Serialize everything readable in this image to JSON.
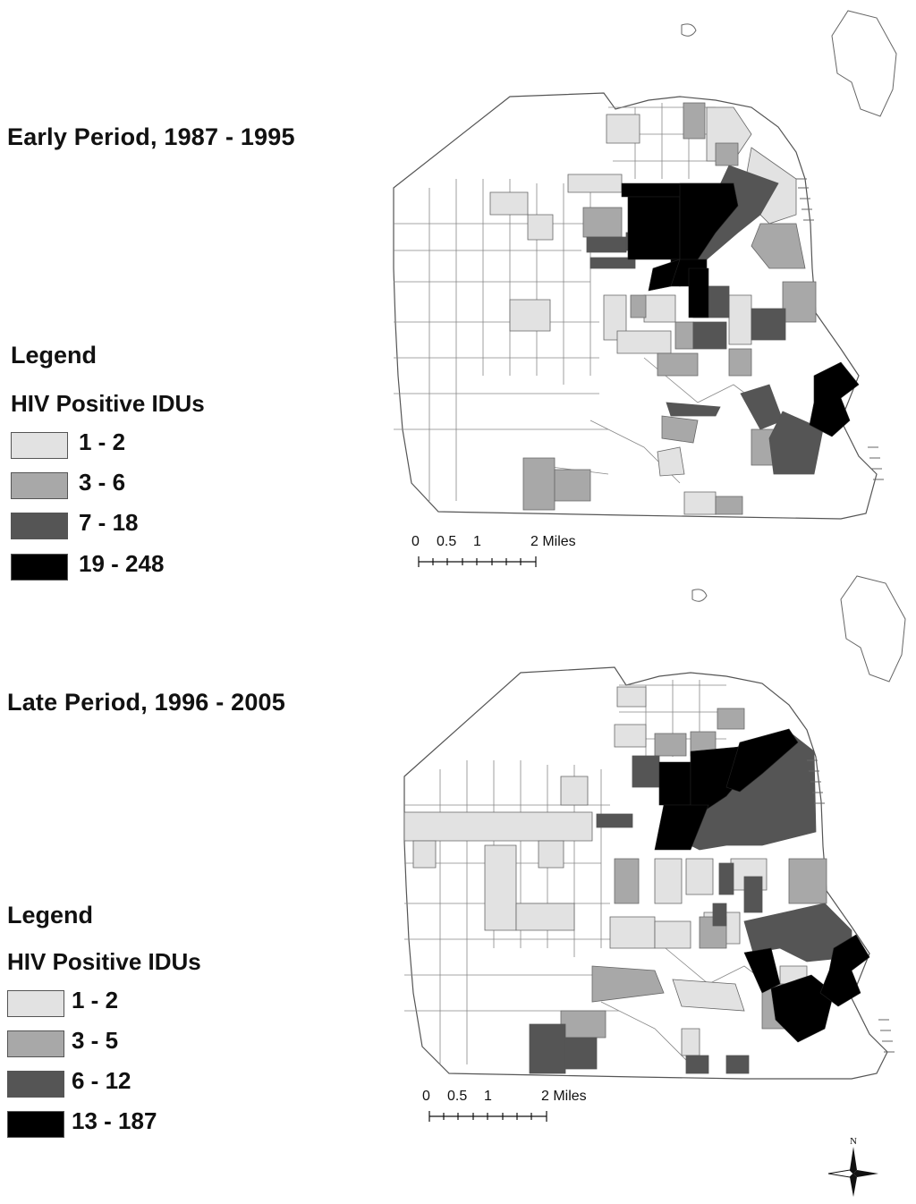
{
  "colors": {
    "class1": "#e2e2e2",
    "class2": "#a8a8a8",
    "class3": "#555555",
    "class4": "#000000",
    "none": "#ffffff",
    "outline": "#666666"
  },
  "maps": [
    {
      "id": "early",
      "title": "Early Period, 1987 - 1995",
      "legend": {
        "heading": "Legend",
        "subheading": "HIV Positive IDUs",
        "classes": [
          {
            "label": "1 - 2",
            "color": "#e2e2e2"
          },
          {
            "label": "3 - 6",
            "color": "#a8a8a8"
          },
          {
            "label": "7 - 18",
            "color": "#555555"
          },
          {
            "label": "19 - 248",
            "color": "#000000"
          }
        ]
      },
      "scale_bar": {
        "labels": [
          "0",
          "0.5",
          "1",
          "2 Miles"
        ]
      }
    },
    {
      "id": "late",
      "title": "Late Period, 1996 - 2005",
      "legend": {
        "heading": "Legend",
        "subheading": "HIV Positive IDUs",
        "classes": [
          {
            "label": "1 - 2",
            "color": "#e2e2e2"
          },
          {
            "label": "3 - 5",
            "color": "#a8a8a8"
          },
          {
            "label": "6 - 12",
            "color": "#555555"
          },
          {
            "label": "13 - 187",
            "color": "#000000"
          }
        ]
      },
      "scale_bar": {
        "labels": [
          "0",
          "0.5",
          "1",
          "2 Miles"
        ]
      }
    }
  ],
  "north_arrow": {
    "label": "N"
  }
}
